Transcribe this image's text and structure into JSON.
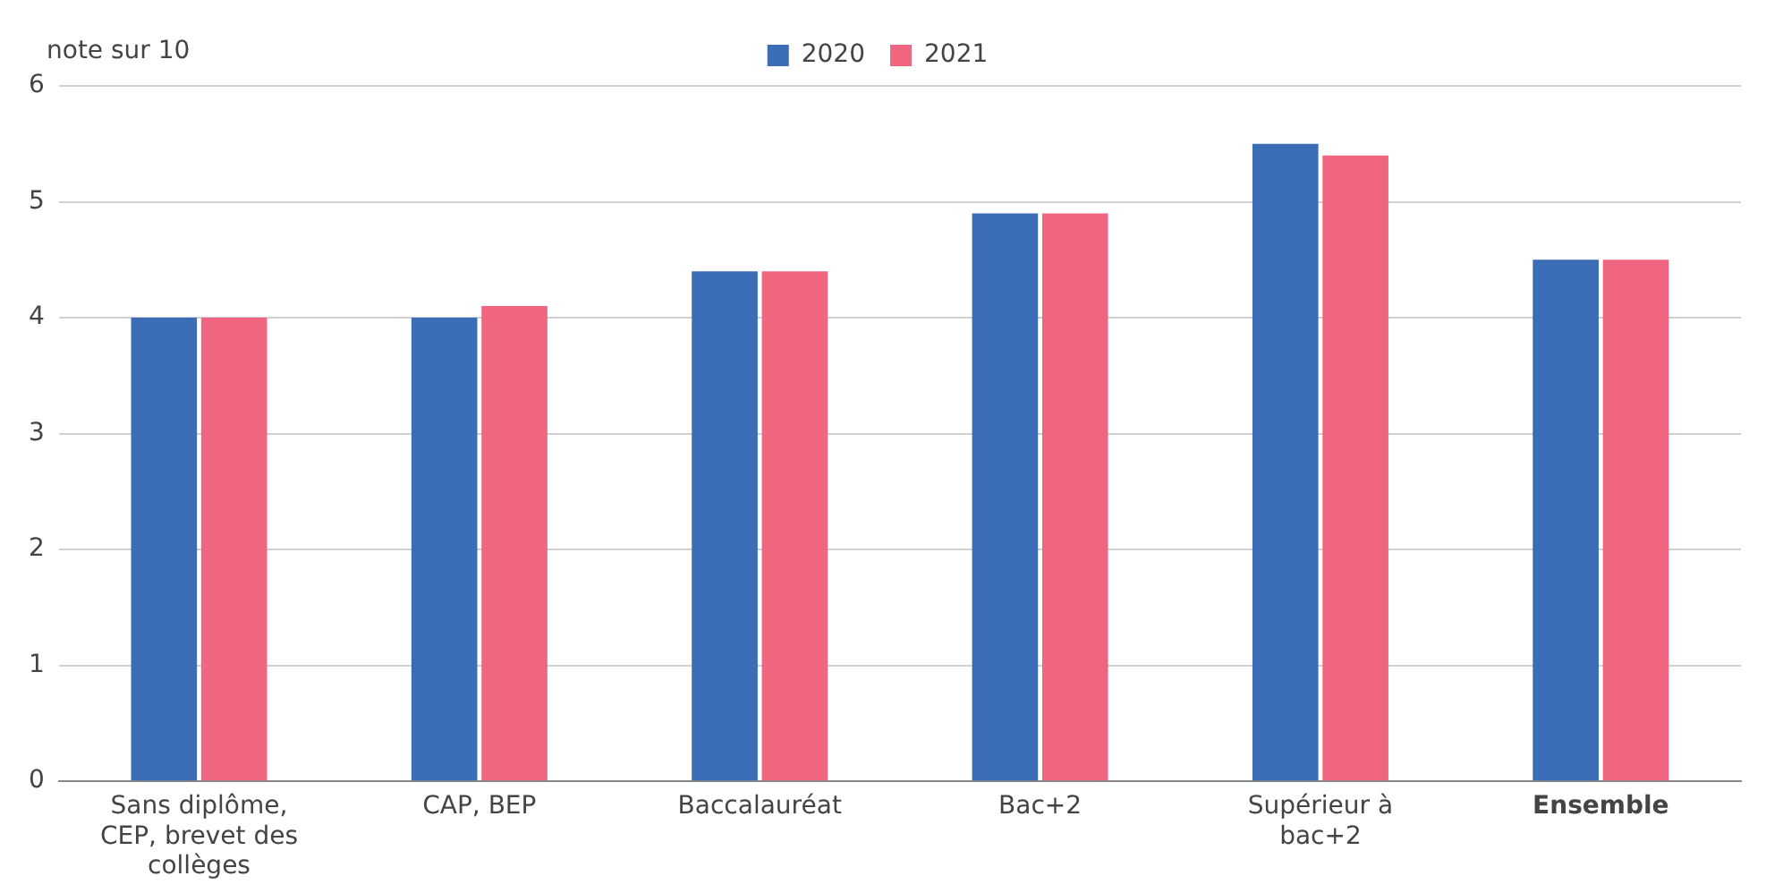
{
  "chart_data": {
    "type": "bar",
    "ylabel": "note sur 10",
    "categories": [
      "Sans diplôme, CEP, brevet des collèges",
      "CAP, BEP",
      "Baccalauréat",
      "Bac+2",
      "Supérieur à bac+2",
      "Ensemble"
    ],
    "series": [
      {
        "name": "2020",
        "color": "#3a6db5",
        "values": [
          4,
          4,
          4.4,
          4.9,
          5.5,
          4.5
        ]
      },
      {
        "name": "2021",
        "color": "#f06680",
        "values": [
          4,
          4.1,
          4.4,
          4.9,
          5.4,
          4.5
        ]
      }
    ],
    "ylim": [
      0,
      6
    ],
    "yticks": [
      0,
      1,
      2,
      3,
      4,
      5,
      6
    ],
    "grid": "y",
    "legend": "top"
  }
}
